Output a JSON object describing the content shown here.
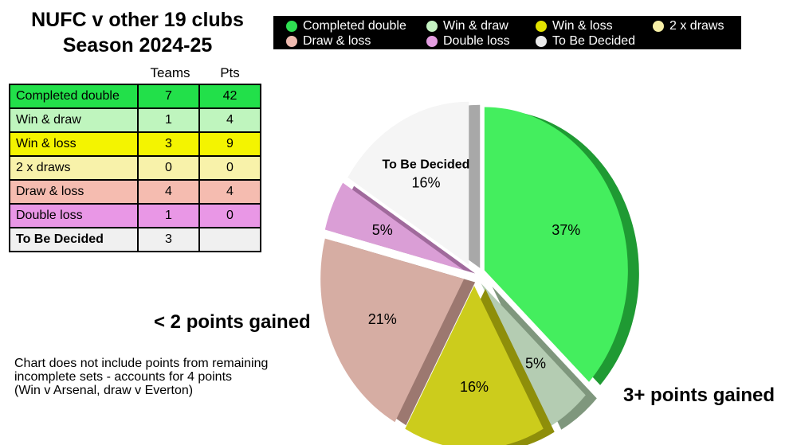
{
  "title_line1": "NUFC v other 19 clubs",
  "title_line2": "Season 2024-25",
  "table": {
    "headers": [
      "Teams",
      "Pts"
    ],
    "rows": [
      {
        "label": "Completed double",
        "teams": "7",
        "pts": "42",
        "color": "#22e04a"
      },
      {
        "label": "Win & draw",
        "teams": "1",
        "pts": "4",
        "color": "#bff5be"
      },
      {
        "label": "Win & loss",
        "teams": "3",
        "pts": "9",
        "color": "#f4f400"
      },
      {
        "label": "2 x draws",
        "teams": "0",
        "pts": "0",
        "color": "#f8f2aa"
      },
      {
        "label": "Draw & loss",
        "teams": "4",
        "pts": "4",
        "color": "#f5bcb0"
      },
      {
        "label": "Double loss",
        "teams": "1",
        "pts": "0",
        "color": "#e997e6"
      },
      {
        "label": "To Be Decided",
        "teams": "3",
        "pts": "",
        "color": "#f0f0f0"
      }
    ]
  },
  "legend": [
    {
      "label": "Completed double",
      "color": "#2fe052"
    },
    {
      "label": "Win & draw",
      "color": "#c5f2c2"
    },
    {
      "label": "Win & loss",
      "color": "#e2e200"
    },
    {
      "label": "2 x draws",
      "color": "#f6efa6"
    },
    {
      "label": "Draw & loss",
      "color": "#efbab0"
    },
    {
      "label": "Double loss",
      "color": "#e49ee1"
    },
    {
      "label": "To Be Decided",
      "color": "#ebebeb"
    }
  ],
  "annotations": {
    "lower": "< 2 points gained",
    "upper": "3+ points gained",
    "note_line1": "Chart does not include points from remaining",
    "note_line2": "incomplete sets - accounts for 4 points",
    "note_line3": "(Win v Arsenal, draw v Everton)"
  },
  "chart_data": {
    "type": "pie",
    "slices": [
      {
        "name": "Completed double",
        "value": 37,
        "label": "37%",
        "color": "#44ee5e",
        "dark": "#1f9a33"
      },
      {
        "name": "Win & draw",
        "value": 5,
        "label": "5%",
        "color": "#b4ccb2",
        "dark": "#7f977d"
      },
      {
        "name": "Win & loss",
        "value": 16,
        "label": "16%",
        "color": "#cccc1c",
        "dark": "#8e8e0a"
      },
      {
        "name": "Draw & loss",
        "value": 21,
        "label": "21%",
        "color": "#d6ada3",
        "dark": "#9c7870"
      },
      {
        "name": "Double loss",
        "value": 5,
        "label": "5%",
        "color": "#da9ed6",
        "dark": "#a06a9c"
      },
      {
        "name": "To Be Decided",
        "value": 16,
        "label": "16%",
        "title": "To Be Decided",
        "color": "#f5f5f5",
        "dark": "#a8a8a8"
      }
    ]
  }
}
